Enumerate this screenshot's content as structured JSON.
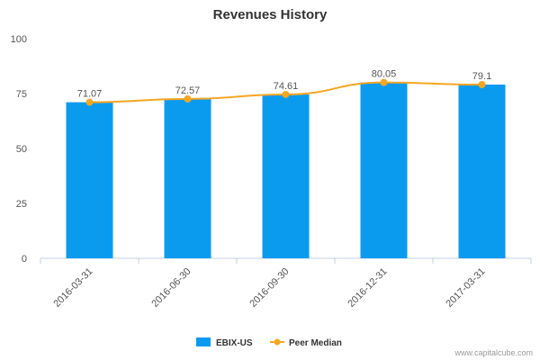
{
  "chart_data": {
    "type": "bar",
    "title": "Revenues History",
    "categories": [
      "2016-03-31",
      "2016-06-30",
      "2016-09-30",
      "2016-12-31",
      "2017-03-31"
    ],
    "series": [
      {
        "name": "EBIX-US",
        "type": "bar",
        "color": "#0a9bef",
        "values": [
          71.07,
          72.57,
          74.61,
          80.05,
          79.1
        ],
        "labels": [
          "71.07",
          "72.57",
          "74.61",
          "80.05",
          "79.1"
        ]
      },
      {
        "name": "Peer Median",
        "type": "line",
        "color": "#f5a623",
        "values": [
          71.07,
          72.57,
          74.61,
          80.05,
          79.1
        ]
      }
    ],
    "ylim": [
      0,
      100
    ],
    "yticks": [
      "0",
      "25",
      "50",
      "75",
      "100"
    ],
    "grid": false,
    "legend_position": "bottom-center"
  },
  "credit": "www.capitalcube.com"
}
